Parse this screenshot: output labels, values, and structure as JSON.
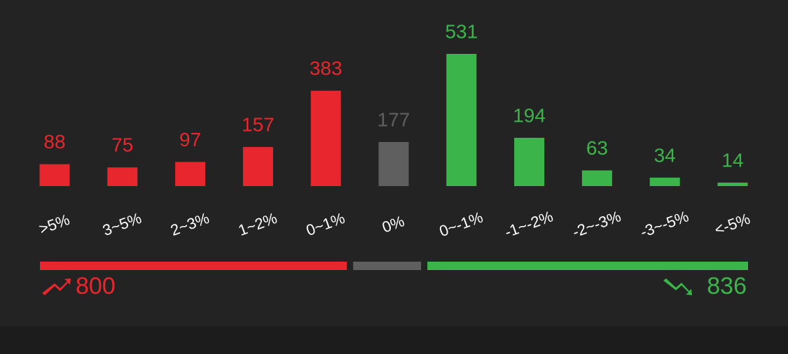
{
  "chart_data": {
    "type": "bar",
    "categories": [
      ">5%",
      "3~5%",
      "2~3%",
      "1~2%",
      "0~1%",
      "0%",
      "0~-1%",
      "-1~-2%",
      "-2~-3%",
      "-3~-5%",
      "<-5%"
    ],
    "values": [
      88,
      75,
      97,
      157,
      383,
      177,
      531,
      194,
      63,
      34,
      14
    ],
    "colors": [
      "#e8262d",
      "#e8262d",
      "#e8262d",
      "#e8262d",
      "#e8262d",
      "#5f5f5f",
      "#3bb54a",
      "#3bb54a",
      "#3bb54a",
      "#3bb54a",
      "#3bb54a"
    ],
    "summary": {
      "up": 800,
      "down": 836,
      "up_color": "#e8262d",
      "flat_color": "#5f5f5f",
      "down_color": "#3bb54a"
    }
  }
}
